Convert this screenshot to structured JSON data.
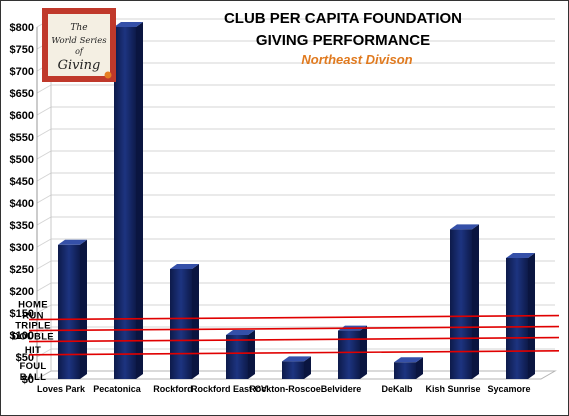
{
  "chart_data": {
    "type": "bar",
    "title_lines": [
      "CLUB PER CAPITA FOUNDATION",
      "GIVING PERFORMANCE"
    ],
    "subtitle": "Northeast Divison",
    "categories": [
      "Loves Park",
      "Pecatonica",
      "Rockford",
      "Rockford East CV",
      "Rockton-Roscoe",
      "Belvidere",
      "DeKalb",
      "Kish Sunrise",
      "Sycamore"
    ],
    "values": [
      305,
      800,
      250,
      100,
      40,
      110,
      38,
      340,
      275
    ],
    "ylim": [
      0,
      800
    ],
    "ytick_step": 50,
    "ytick_prefix": "$",
    "grid": true,
    "bar_color": "#13235f",
    "reference_lines": [
      {
        "label": "HOME RUN",
        "value": 135
      },
      {
        "label": "TRIPLE",
        "value": 110
      },
      {
        "label": "DOUBLE",
        "value": 85
      },
      {
        "label": "HIT",
        "value": 55
      },
      {
        "label": "FOUL BALL",
        "value": 0
      }
    ],
    "reference_color": "#e00000"
  },
  "logo": {
    "lines": [
      "The",
      "World Series",
      "of",
      "Giving"
    ],
    "frame_color": "#c0392b",
    "dot_color": "#e67e22"
  }
}
